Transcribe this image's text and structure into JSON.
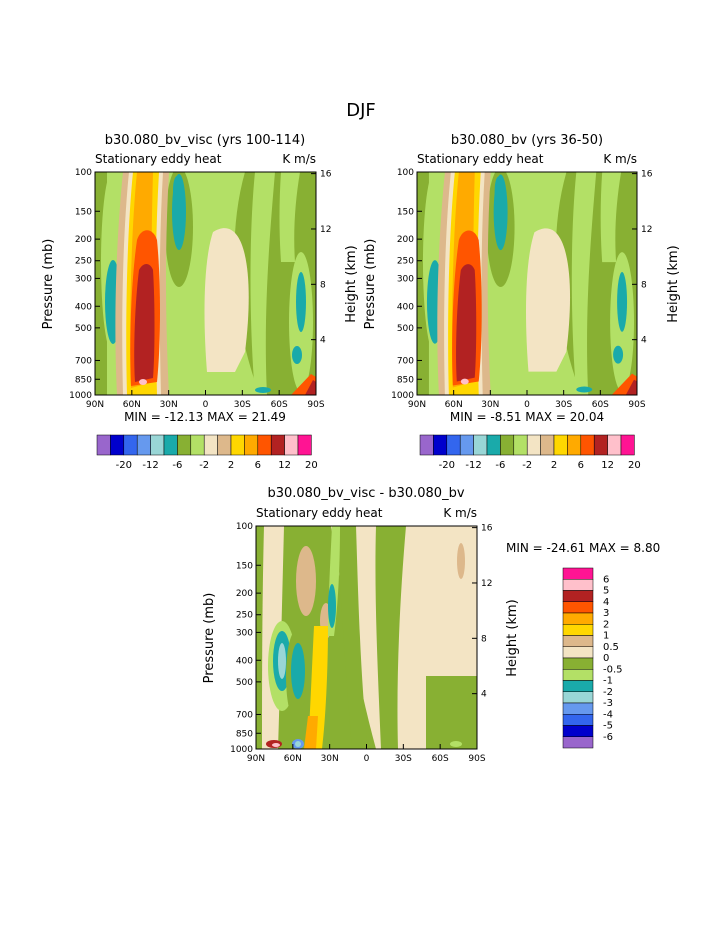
{
  "page_title": "DJF",
  "colors": {
    "purple": "#9966cc",
    "navy": "#0000cc",
    "blue": "#3366ee",
    "mid_blue": "#6699ee",
    "light_cyan": "#99d6d6",
    "teal": "#1aaaaa",
    "dark_green": "#88b033",
    "light_green": "#b3e066",
    "cream": "#f3e4c4",
    "tan": "#ddb88b",
    "yellow": "#ffd700",
    "orange": "#ffaa00",
    "red_orange": "#ff5500",
    "dark_red": "#b22222",
    "light_pink": "#ffc0cb",
    "magenta": "#ff1493"
  },
  "chart_data": [
    {
      "type": "heatmap",
      "title": "b30.080_bv_visc (yrs 100-114)",
      "left_subtitle": "Stationary eddy heat",
      "right_subtitle": "K m/s",
      "xlabel": "",
      "ylabel": "Pressure (mb)",
      "y2label": "Height (km)",
      "x_ticks": [
        "90N",
        "60N",
        "30N",
        "0",
        "30S",
        "60S",
        "90S"
      ],
      "y_ticks": [
        "100",
        "150",
        "200",
        "250",
        "300",
        "400",
        "500",
        "700",
        "850",
        "1000"
      ],
      "y2_ticks": [
        "16",
        "12",
        "8",
        "4"
      ],
      "stats": "MIN = -12.13   MAX =  21.49",
      "colorbar_labels": [
        "-20",
        "-12",
        "-6",
        "-2",
        "2",
        "6",
        "12",
        "20"
      ]
    },
    {
      "type": "heatmap",
      "title": "b30.080_bv (yrs 36-50)",
      "left_subtitle": "Stationary eddy heat",
      "right_subtitle": "K m/s",
      "xlabel": "",
      "ylabel": "Pressure (mb)",
      "y2label": "Height (km)",
      "x_ticks": [
        "90N",
        "60N",
        "30N",
        "0",
        "30S",
        "60S",
        "90S"
      ],
      "y_ticks": [
        "100",
        "150",
        "200",
        "250",
        "300",
        "400",
        "500",
        "700",
        "850",
        "1000"
      ],
      "y2_ticks": [
        "16",
        "12",
        "8",
        "4"
      ],
      "stats": "MIN =  -8.51   MAX =  20.04",
      "colorbar_labels": [
        "-20",
        "-12",
        "-6",
        "-2",
        "2",
        "6",
        "12",
        "20"
      ]
    },
    {
      "type": "heatmap",
      "title": "b30.080_bv_visc - b30.080_bv",
      "left_subtitle": "Stationary eddy heat",
      "right_subtitle": "K m/s",
      "xlabel": "",
      "ylabel": "Pressure (mb)",
      "y2label": "Height (km)",
      "x_ticks": [
        "90N",
        "60N",
        "30N",
        "0",
        "30S",
        "60S",
        "90S"
      ],
      "y_ticks": [
        "100",
        "150",
        "200",
        "250",
        "300",
        "400",
        "500",
        "700",
        "850",
        "1000"
      ],
      "y2_ticks": [
        "16",
        "12",
        "8",
        "4"
      ],
      "stats": "MIN = -24.61   MAX =   8.80",
      "colorbar_labels": [
        "6",
        "5",
        "4",
        "3",
        "2",
        "1",
        "0.5",
        "0",
        "-0.5",
        "-1",
        "-2",
        "-3",
        "-4",
        "-5",
        "-6"
      ]
    }
  ]
}
